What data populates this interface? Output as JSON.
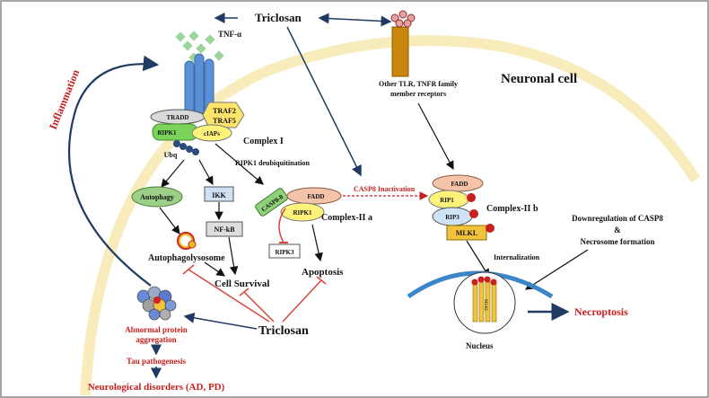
{
  "labels": {
    "triclosan_top": "Triclosan",
    "tnf_alpha": "TNF-α",
    "tradd": "TRADD",
    "traf2": "TRAF2",
    "traf5": "TRAF5",
    "ripk1_c1": "RIPK1",
    "ciaps": "cIAPs",
    "complex_i": "Complex I",
    "ubq": "Ubq",
    "ripk1_deubiq": "RIPK1 deubiquitination",
    "autophagy": "Autophagy",
    "ikk": "IKK",
    "nfkb": "NF-kB",
    "autophagolysosome": "Autophagolysosome",
    "cell_survival": "Cell Survival",
    "casp8": "CASP8-8",
    "fadd_c2a": "FADD",
    "ripk1_c2a": "RIPK1",
    "complex_iia": "Complex-II a",
    "ripk3": "RIPK3",
    "apoptosis": "Apoptosis",
    "casp8_inactivation": "CASP8 Inactivation",
    "fadd_c2b": "FADD",
    "rip1": "RIP1",
    "rip3": "RIP3",
    "complex_iib": "Complex-II b",
    "mlkl": "MLKL",
    "other_receptors_1": "Other TLR, TNFR family",
    "other_receptors_2": "member receptors",
    "neuronal_cell": "Neuronal cell",
    "internalization": "Internalization",
    "downreg_1": "Downregulation of CASP8",
    "downreg_amp": "&",
    "downreg_2": "Necrosome formation",
    "nucleus": "Nucleus",
    "necroptosis": "Necroptosis",
    "triclosan_bottom": "Triclosan",
    "inflammation": "Inflammation",
    "abnormal_1": "Abnormal protein",
    "abnormal_2": "aggregation",
    "tau": "Tau pathogenesis",
    "neuro_disorders": "Neurological disorders (AD, PD)",
    "mlkl_small": "MLKL"
  },
  "colors": {
    "membrane": "#f7e9b0",
    "receptor": "#5b8fd6",
    "tradd": "#d9d9d9",
    "traf": "#ffe46b",
    "ripk1": "#7bd35a",
    "ciaps": "#fff27a",
    "ubq": "#2c4a7c",
    "autophagy": "#9ccf88",
    "ikk": "#cfe0f3",
    "casp8": "#8fd07a",
    "fadd": "#f4c3a9",
    "rip3": "#cfe3f7",
    "mlkl": "#f2c23a",
    "other_receptor": "#c8860c",
    "nucleus_arc": "#3a86c9",
    "arrow_dark": "#1f3b63",
    "red": "#c8201e",
    "inhibit_red": "#d9453c"
  }
}
